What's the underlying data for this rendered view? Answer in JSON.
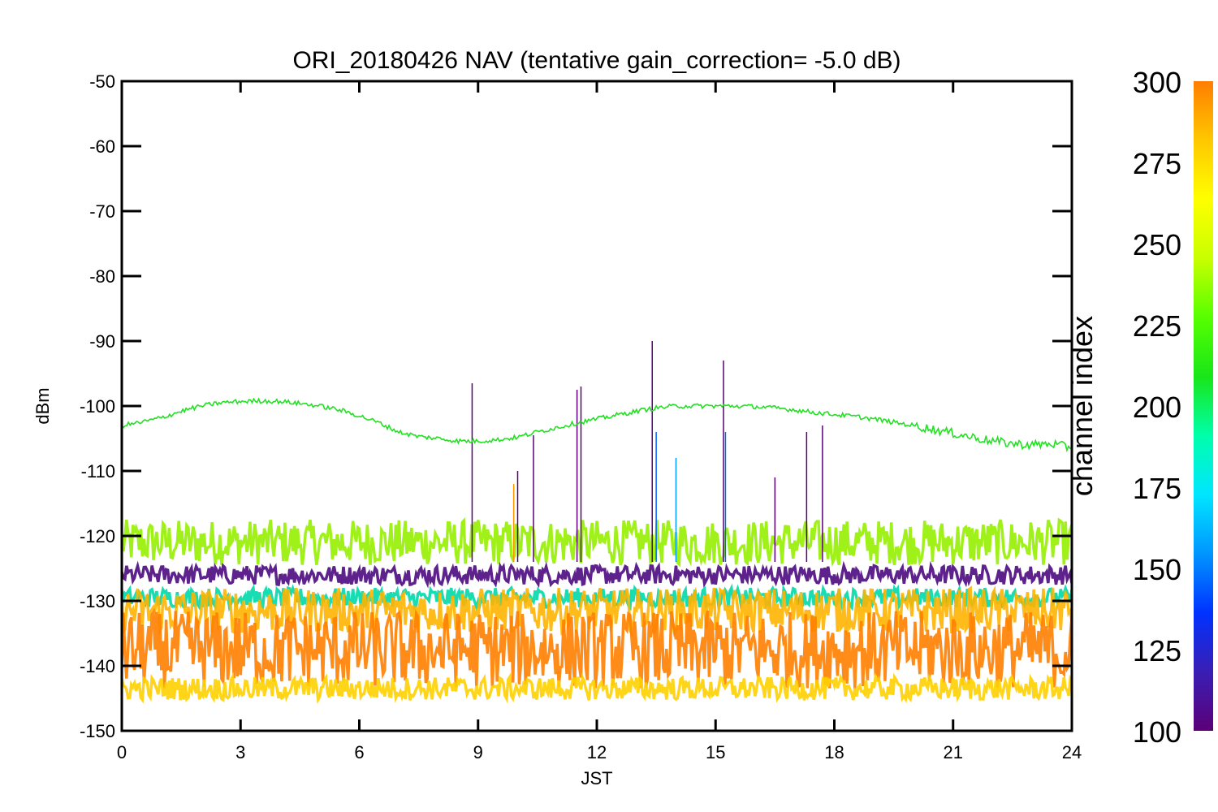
{
  "chart_data": {
    "type": "line",
    "title": "ORI_20180426 NAV (tentative gain_correction= -5.0 dB)",
    "xlabel": "JST",
    "ylabel": "dBm",
    "xlim": [
      0,
      24
    ],
    "ylim": [
      -150,
      -50
    ],
    "xticks": [
      0,
      3,
      6,
      9,
      12,
      15,
      18,
      21,
      24
    ],
    "yticks": [
      -50,
      -60,
      -70,
      -80,
      -90,
      -100,
      -110,
      -120,
      -130,
      -140,
      -150
    ],
    "grid": false,
    "colorbar": {
      "label": "channel index",
      "range": [
        100,
        300
      ],
      "ticks": [
        300,
        275,
        250,
        225,
        200,
        175,
        150,
        125,
        100
      ],
      "colors": [
        "#5a0078",
        "#3a1eb4",
        "#0032ff",
        "#0096ff",
        "#00e6ff",
        "#00ffaa",
        "#19e619",
        "#55ff00",
        "#c8ff00",
        "#ffff00",
        "#ffc800",
        "#ff7d00"
      ]
    },
    "series": [
      {
        "color": "#22e022",
        "x": [
          0,
          0.5,
          1,
          1.5,
          2,
          2.5,
          3,
          3.5,
          4,
          4.5,
          5,
          5.5,
          6,
          6.5,
          7,
          7.5,
          8,
          8.5,
          9,
          9.5,
          10,
          10.5,
          11,
          11.5,
          12,
          12.5,
          13,
          13.5,
          14,
          14.5,
          15,
          15.5,
          16,
          16.5,
          17,
          17.5,
          18,
          18.5,
          19,
          19.5,
          20,
          20.5,
          21,
          21.5,
          22,
          22.5,
          23,
          23.5,
          24
        ],
        "y": [
          -103,
          -102.5,
          -101.8,
          -100.8,
          -100,
          -99.5,
          -99.3,
          -99.2,
          -99.3,
          -99.6,
          -100,
          -100.6,
          -101.5,
          -102.6,
          -104,
          -104.7,
          -105,
          -105.4,
          -105.4,
          -105.2,
          -104.8,
          -104,
          -103.3,
          -102.6,
          -102,
          -101.4,
          -100.8,
          -100.3,
          -100,
          -100,
          -100,
          -100,
          -100.1,
          -100.3,
          -100.6,
          -101,
          -101.3,
          -101.6,
          -102,
          -102.5,
          -103,
          -103.6,
          -104.2,
          -104.8,
          -105.4,
          -105.8,
          -106,
          -105.8,
          -106.5
        ]
      }
    ],
    "bands": [
      {
        "color": "#95f000",
        "center": -121,
        "halfwidth": 3.5
      },
      {
        "color": "#4d0a80",
        "center": -126,
        "halfwidth": 1.5
      },
      {
        "color": "#00d8aa",
        "center": -129.5,
        "halfwidth": 1.5
      },
      {
        "color": "#ffb400",
        "center": -131.5,
        "halfwidth": 3.5
      },
      {
        "color": "#ff8000",
        "center": -137.5,
        "halfwidth": 6
      },
      {
        "color": "#ffd000",
        "center": -143.5,
        "halfwidth": 1.8
      }
    ],
    "spikes": [
      {
        "x": 8.85,
        "y": -96.5,
        "color": "#5a0078"
      },
      {
        "x": 10.4,
        "y": -104.5,
        "color": "#5a0078"
      },
      {
        "x": 11.5,
        "y": -97.5,
        "color": "#5a0078"
      },
      {
        "x": 11.6,
        "y": -97,
        "color": "#5a0078"
      },
      {
        "x": 13.4,
        "y": -90,
        "color": "#5a0078"
      },
      {
        "x": 13.5,
        "y": -104,
        "color": "#0064ff"
      },
      {
        "x": 15.2,
        "y": -93,
        "color": "#5a0078"
      },
      {
        "x": 15.25,
        "y": -104,
        "color": "#0064ff"
      },
      {
        "x": 17.3,
        "y": -104,
        "color": "#5a0078"
      },
      {
        "x": 17.7,
        "y": -103,
        "color": "#5a0078"
      },
      {
        "x": 14.0,
        "y": -108,
        "color": "#0096ff"
      },
      {
        "x": 16.5,
        "y": -111,
        "color": "#5a0078"
      },
      {
        "x": 10.0,
        "y": -110,
        "color": "#5a0078"
      },
      {
        "x": 9.9,
        "y": -112,
        "color": "#ff9600"
      }
    ]
  }
}
